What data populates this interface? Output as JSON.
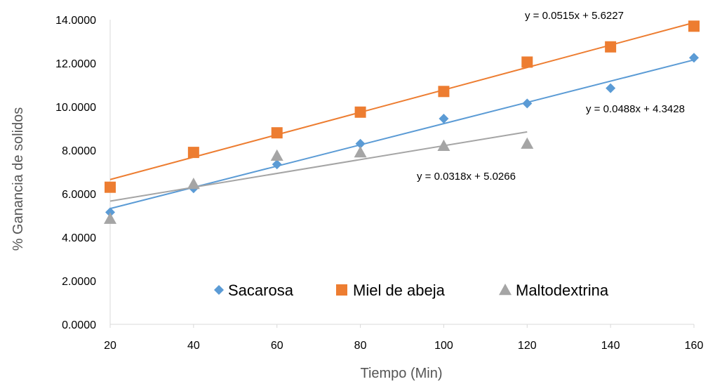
{
  "chart_data": {
    "type": "scatter",
    "title": "",
    "xlabel": "Tiempo (Min)",
    "ylabel": "% Ganancia de solidos",
    "xlim": [
      20,
      160
    ],
    "ylim": [
      0,
      14
    ],
    "xticks": [
      "20",
      "40",
      "60",
      "80",
      "100",
      "120",
      "140",
      "160"
    ],
    "yticks": [
      "0.0000",
      "2.0000",
      "4.0000",
      "6.0000",
      "8.0000",
      "10.0000",
      "12.0000",
      "14.0000"
    ],
    "grid": false,
    "legend_position": "bottom-inside",
    "series": [
      {
        "name": "Sacarosa",
        "marker": "diamond",
        "color": "#5B9BD5",
        "x": [
          20,
          40,
          60,
          80,
          100,
          120,
          140,
          160
        ],
        "y": [
          5.15,
          6.25,
          7.35,
          8.3,
          9.45,
          10.15,
          10.85,
          12.25
        ],
        "trendline": {
          "slope": 0.0488,
          "intercept": 4.3428,
          "x_range": [
            20,
            160
          ],
          "equation": "y = 0.0488x + 4.3428"
        }
      },
      {
        "name": "Miel de abeja",
        "marker": "square",
        "color": "#ED7D31",
        "x": [
          20,
          40,
          60,
          80,
          100,
          120,
          140,
          160
        ],
        "y": [
          6.3,
          7.9,
          8.8,
          9.75,
          10.7,
          12.05,
          12.75,
          13.7
        ],
        "trendline": {
          "slope": 0.0515,
          "intercept": 5.6227,
          "x_range": [
            20,
            160
          ],
          "equation": "y = 0.0515x + 5.6227"
        }
      },
      {
        "name": "Maltodextrina",
        "marker": "triangle",
        "color": "#A5A5A5",
        "x": [
          20,
          40,
          60,
          80,
          100,
          120
        ],
        "y": [
          4.85,
          6.45,
          7.75,
          7.9,
          8.2,
          8.3
        ],
        "trendline": {
          "slope": 0.0318,
          "intercept": 5.0266,
          "x_range": [
            20,
            120
          ],
          "equation": "y = 0.0318x + 5.0266"
        }
      }
    ]
  }
}
